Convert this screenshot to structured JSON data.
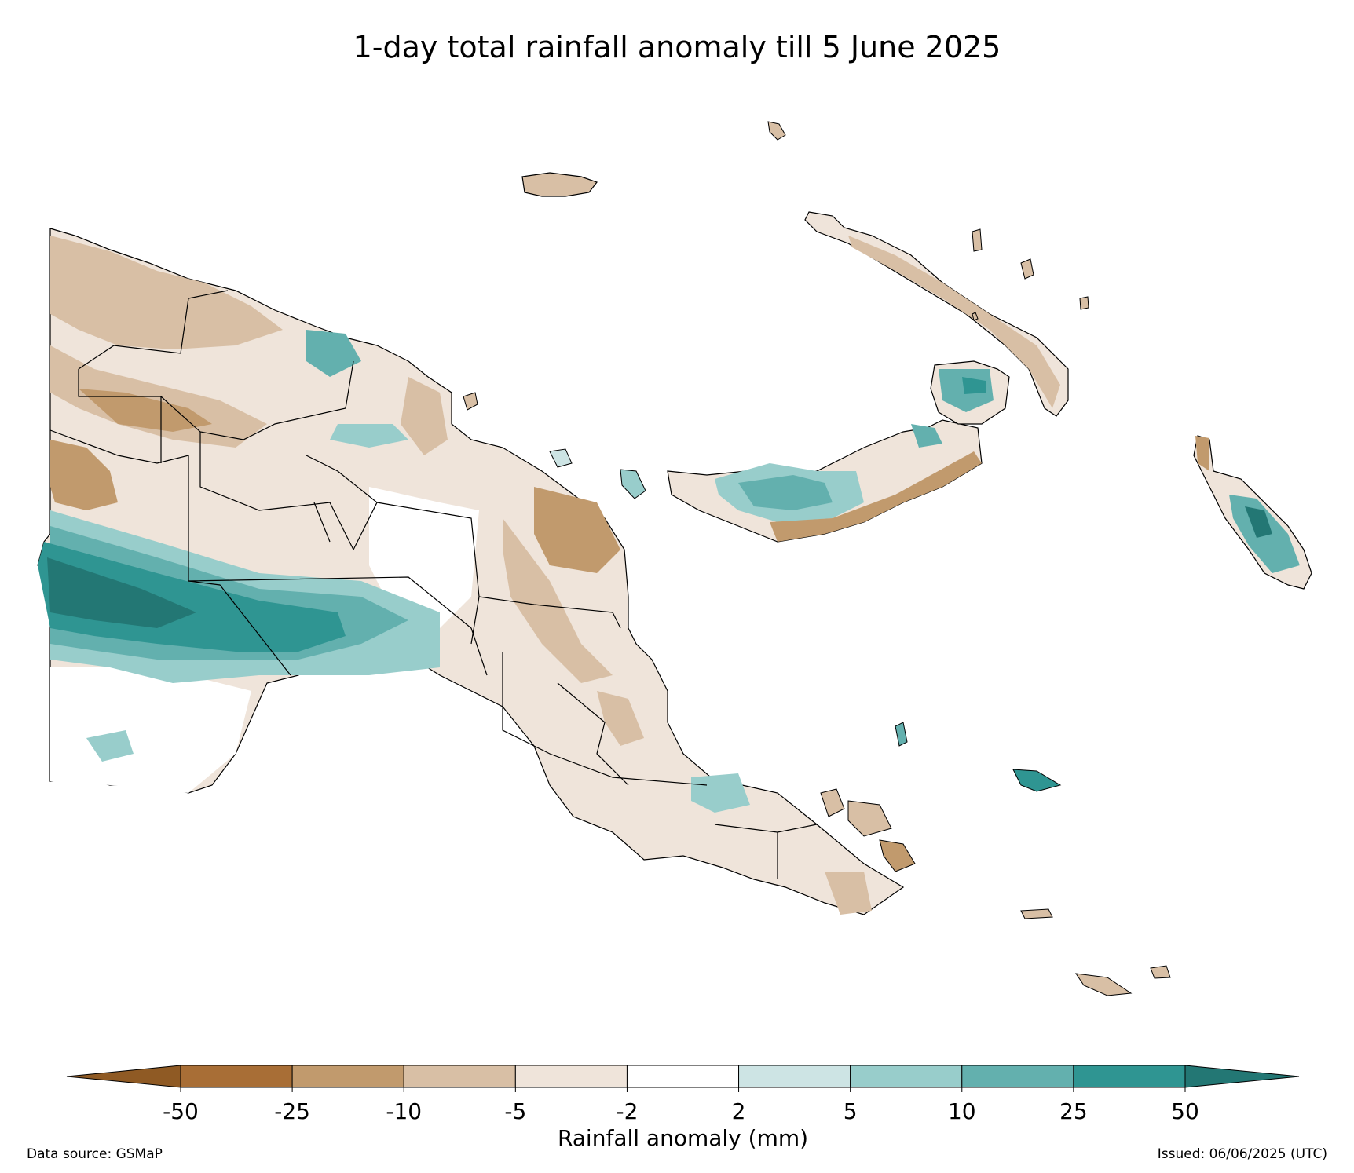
{
  "title": "1-day total rainfall anomaly till 5 June 2025",
  "colorbar": {
    "label": "Rainfall anomaly (mm)",
    "ticks": [
      "-50",
      "-25",
      "-10",
      "-5",
      "-2",
      "2",
      "5",
      "10",
      "25",
      "50"
    ],
    "colors": [
      "#a86e36",
      "#c19a6d",
      "#d8bfa5",
      "#efe4da",
      "#ffffff",
      "#cde4e4",
      "#98cdcb",
      "#63b0ae",
      "#2f9592"
    ],
    "under_color": "#8f5a24",
    "over_color": "#237774"
  },
  "colors": {
    "land_outline": "#000000",
    "strong_dry": "#c19a6d",
    "moderate_dry": "#d8bfa5",
    "light_dry": "#efe4da",
    "light_wet": "#cde4e4",
    "moderate_wet": "#98cdcb",
    "wet": "#63b0ae",
    "very_wet": "#2f9592",
    "extreme_wet": "#237774"
  },
  "footer": {
    "source": "Data source: GSMaP",
    "issued": "Issued: 06/06/2025 (UTC)"
  }
}
